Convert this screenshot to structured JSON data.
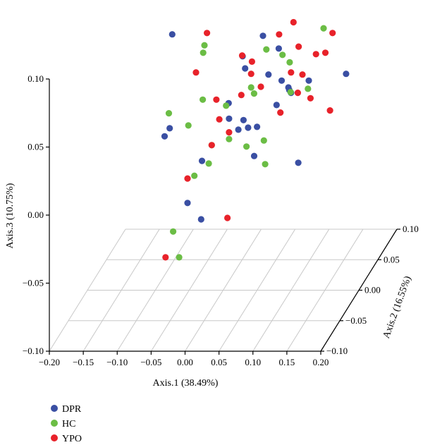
{
  "chart_data": {
    "type": "scatter",
    "title": "",
    "xlabel": "Axis.1 (38.49%)",
    "ylabel": "Axis.2 (16.55%)",
    "zlabel": "Axis.3 (10.75%)",
    "x_ticks": [
      "−0.20",
      "−0.15",
      "−0.10",
      "−0.05",
      "0.00",
      "0.05",
      "0.10",
      "0.15",
      "0.20"
    ],
    "y_ticks": [
      "−0.10",
      "−0.05",
      "0.00",
      "0.05",
      "0.10"
    ],
    "z_ticks": [
      "−0.10",
      "−0.05",
      "0.00",
      "0.05",
      "0.10"
    ],
    "xlim": [
      -0.2,
      0.2
    ],
    "ylim": [
      -0.1,
      0.1
    ],
    "zlim": [
      -0.1,
      0.1
    ],
    "grid": true,
    "legend_position": "bottom-left",
    "series": [
      {
        "name": "DPR",
        "color": "#3a4fa3",
        "points": [
          [
            0.055,
            0.1,
            0.16
          ],
          [
            -0.075,
            0.0,
            0.088
          ],
          [
            -0.045,
            0.0,
            0.125
          ],
          [
            0.11,
            -0.05,
            0.1
          ],
          [
            0.025,
            0.06,
            0.06
          ],
          [
            0.075,
            0.02,
            0.045
          ],
          [
            0.12,
            -0.04,
            0.065
          ],
          [
            0.085,
            0.02,
            0.04
          ],
          [
            -0.09,
            0.02,
            0.01
          ],
          [
            -0.075,
            -0.02,
            0.022
          ],
          [
            -0.02,
            0.05,
            0.015
          ],
          [
            0.0,
            0.04,
            0.0
          ],
          [
            0.02,
            0.03,
            0.006
          ],
          [
            -0.02,
            -0.02,
            0.004
          ],
          [
            -0.03,
            -0.04,
            -0.018
          ],
          [
            -0.01,
            -0.04,
            -0.03
          ],
          [
            0.03,
            0.0,
            0.025
          ],
          [
            0.01,
            0.04,
            0.045
          ],
          [
            0.05,
            0.03,
            0.045
          ],
          [
            0.1,
            0.0,
            0.045
          ],
          [
            0.09,
            -0.02,
            0.045
          ],
          [
            0.115,
            0.02,
            0.045
          ],
          [
            0.085,
            -0.07,
            0.03
          ],
          [
            0.17,
            0.02,
            0.05
          ],
          [
            0.02,
            -0.02,
            0.035
          ],
          [
            0.15,
            -0.07,
            0.025
          ],
          [
            -0.005,
            0.06,
            0.045
          ],
          [
            0.05,
            0.0,
            0.02
          ]
        ]
      },
      {
        "name": "HC",
        "color": "#6bbd45",
        "points": [
          [
            -0.045,
            0.06,
            0.14
          ],
          [
            -0.06,
            0.05,
            0.1
          ],
          [
            -0.035,
            0.01,
            0.07
          ],
          [
            -0.05,
            0.04,
            0.062
          ],
          [
            0.01,
            -0.01,
            0.04
          ],
          [
            -0.03,
            0.0,
            0.04
          ],
          [
            0.03,
            0.06,
            0.05
          ],
          [
            0.065,
            0.04,
            0.055
          ],
          [
            0.03,
            0.02,
            0.04
          ],
          [
            0.07,
            0.05,
            0.045
          ],
          [
            0.12,
            0.05,
            0.07
          ],
          [
            0.125,
            0.0,
            0.048
          ],
          [
            0.105,
            -0.01,
            0.05
          ],
          [
            -0.04,
            -0.02,
            0.03
          ],
          [
            0.0,
            -0.03,
            0.02
          ],
          [
            0.02,
            -0.02,
            0.02
          ],
          [
            0.04,
            -0.01,
            0.01
          ],
          [
            0.06,
            0.0,
            0.01
          ],
          [
            0.09,
            -0.05,
            0.015
          ],
          [
            -0.02,
            -0.04,
            0.002
          ],
          [
            -0.01,
            -0.02,
            0.002
          ],
          [
            -0.08,
            0.0,
            0.03
          ],
          [
            -0.04,
            -0.06,
            -0.03
          ],
          [
            -0.02,
            -0.08,
            -0.04
          ],
          [
            0.04,
            0.01,
            0.04
          ]
        ]
      },
      {
        "name": "YPO",
        "color": "#e8222a",
        "points": [
          [
            -0.06,
            0.08,
            0.12
          ],
          [
            -0.055,
            0.07,
            0.11
          ],
          [
            -0.05,
            0.06,
            0.09
          ],
          [
            -0.03,
            0.06,
            0.09
          ],
          [
            -0.035,
            0.02,
            0.08
          ],
          [
            -0.04,
            0.0,
            0.06
          ],
          [
            0.06,
            0.04,
            0.07
          ],
          [
            0.07,
            0.06,
            0.07
          ],
          [
            0.1,
            0.02,
            0.07
          ],
          [
            0.1,
            0.0,
            0.06
          ],
          [
            0.12,
            0.03,
            0.06
          ],
          [
            0.15,
            0.02,
            0.08
          ],
          [
            0.145,
            0.01,
            0.07
          ],
          [
            0.1,
            0.03,
            0.045
          ],
          [
            0.11,
            0.0,
            0.045
          ],
          [
            0.14,
            -0.02,
            0.05
          ],
          [
            0.18,
            -0.04,
            0.05
          ],
          [
            0.0,
            0.05,
            0.05
          ],
          [
            0.02,
            0.04,
            0.05
          ],
          [
            0.03,
            0.02,
            0.05
          ],
          [
            -0.01,
            0.0,
            0.04
          ],
          [
            0.0,
            -0.01,
            0.03
          ],
          [
            0.01,
            0.03,
            0.03
          ],
          [
            0.09,
            -0.01,
            0.035
          ],
          [
            0.02,
            -0.02,
            0.025
          ],
          [
            0.0,
            -0.03,
            0.02
          ],
          [
            -0.03,
            -0.04,
            0.0
          ],
          [
            0.04,
            -0.06,
            -0.02
          ],
          [
            -0.04,
            -0.08,
            -0.04
          ],
          [
            0.05,
            0.01,
            0.045
          ]
        ]
      }
    ]
  }
}
